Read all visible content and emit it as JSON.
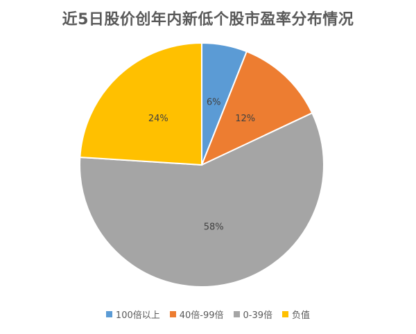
{
  "chart_data": {
    "type": "pie",
    "title": "近5日股价创年内新低个股市盈率分布情况",
    "categories": [
      "100倍以上",
      "40倍-99倍",
      "0-39倍",
      "负值"
    ],
    "values": [
      6,
      12,
      58,
      24
    ],
    "labels": [
      "6%",
      "12%",
      "58%",
      "24%"
    ],
    "colors": [
      "#5B9BD5",
      "#ED7D31",
      "#A5A5A5",
      "#FFC000"
    ],
    "legend_position": "bottom"
  }
}
